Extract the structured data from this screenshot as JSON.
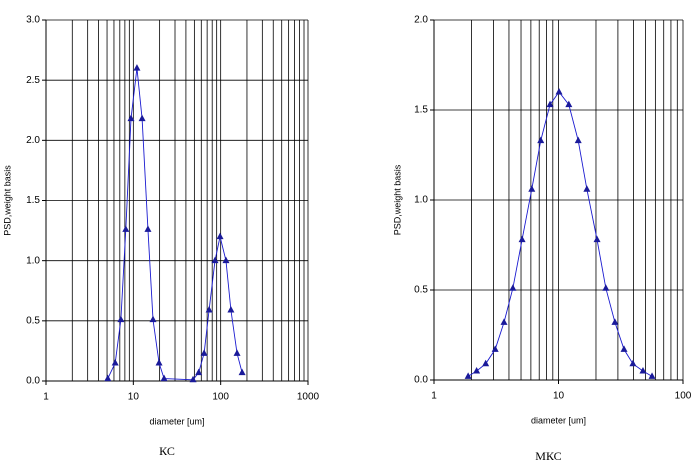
{
  "chart_data": [
    {
      "type": "line",
      "color": "#1a1ad0",
      "marker": "triangle",
      "log_x": true,
      "grid": true,
      "x_label": "diameter [um]",
      "y_label": "PSD,weight basis",
      "caption": "КС",
      "x": [
        5.1,
        6.2,
        7.2,
        8.2,
        9.4,
        11.0,
        12.6,
        14.7,
        16.8,
        19.7,
        22.5,
        48.3,
        56,
        64.6,
        73.7,
        86.1,
        98.4,
        115,
        131,
        154,
        176
      ],
      "values": [
        0.02,
        0.15,
        0.51,
        1.26,
        2.18,
        2.6,
        2.18,
        1.26,
        0.51,
        0.15,
        0.02,
        0.01,
        0.07,
        0.23,
        0.59,
        1.0,
        1.2,
        1.0,
        0.59,
        0.23,
        0.07
      ],
      "xlim": [
        1,
        1000
      ],
      "xticks": [
        1,
        10,
        100,
        1000
      ],
      "ylim": [
        0,
        3
      ],
      "yticks": [
        {
          "value": 0,
          "label": "0.0"
        },
        {
          "value": 0.5,
          "label": "0.5"
        },
        {
          "value": 1,
          "label": "1.0"
        },
        {
          "value": 1.5,
          "label": "1.5"
        },
        {
          "value": 2,
          "label": "2.0"
        },
        {
          "value": 2.5,
          "label": "2.5"
        },
        {
          "value": 3,
          "label": "3.0"
        }
      ]
    },
    {
      "type": "line",
      "color": "#1a1ad0",
      "marker": "triangle",
      "log_x": true,
      "grid": true,
      "x_label": "diameter [um]",
      "y_label": "PSD,weight basis",
      "caption": "МКС",
      "x": [
        1.88,
        2.2,
        2.6,
        3.1,
        3.65,
        4.3,
        5.1,
        6.1,
        7.2,
        8.55,
        10.1,
        12.1,
        14.4,
        16.9,
        20.4,
        24.0,
        28.4,
        33.6,
        39.6,
        47.7,
        56.4
      ],
      "values": [
        0.02,
        0.05,
        0.09,
        0.17,
        0.32,
        0.51,
        0.78,
        1.06,
        1.33,
        1.53,
        1.6,
        1.53,
        1.33,
        1.06,
        0.78,
        0.51,
        0.32,
        0.17,
        0.09,
        0.05,
        0.02
      ],
      "xlim": [
        1,
        100
      ],
      "xticks": [
        1,
        10,
        100
      ],
      "ylim": [
        0,
        2
      ],
      "yticks": [
        {
          "value": 0,
          "label": "0.0"
        },
        {
          "value": 0.5,
          "label": "0.5"
        },
        {
          "value": 1,
          "label": "1.0"
        },
        {
          "value": 1.5,
          "label": "1.5"
        },
        {
          "value": 2,
          "label": "2.0"
        }
      ]
    }
  ]
}
